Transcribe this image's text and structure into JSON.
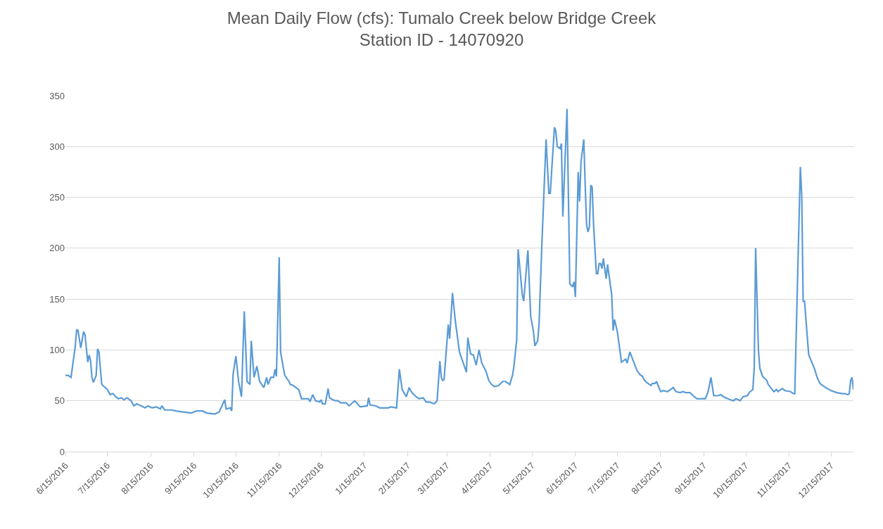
{
  "chart_data": {
    "type": "line",
    "title": "Mean Daily Flow (cfs): Tumalo Creek below Bridge Creek\nStation ID - 14070920",
    "x": [
      "2016-06-15",
      "2016-06-17",
      "2016-06-19",
      "2016-06-22",
      "2016-06-23",
      "2016-06-24",
      "2016-06-26",
      "2016-06-28",
      "2016-06-29",
      "2016-07-01",
      "2016-07-02",
      "2016-07-03",
      "2016-07-04",
      "2016-07-05",
      "2016-07-07",
      "2016-07-08",
      "2016-07-09",
      "2016-07-11",
      "2016-07-15",
      "2016-07-17",
      "2016-07-19",
      "2016-07-21",
      "2016-07-23",
      "2016-07-25",
      "2016-07-27",
      "2016-07-29",
      "2016-08-01",
      "2016-08-03",
      "2016-08-05",
      "2016-08-11",
      "2016-08-13",
      "2016-08-16",
      "2016-08-19",
      "2016-08-22",
      "2016-08-23",
      "2016-08-25",
      "2016-08-30",
      "2016-09-02",
      "2016-09-07",
      "2016-09-13",
      "2016-09-17",
      "2016-09-21",
      "2016-09-24",
      "2016-09-30",
      "2016-10-03",
      "2016-10-05",
      "2016-10-07",
      "2016-10-08",
      "2016-10-11",
      "2016-10-12",
      "2016-10-13",
      "2016-10-15",
      "2016-10-17",
      "2016-10-19",
      "2016-10-21",
      "2016-10-23",
      "2016-10-25",
      "2016-10-26",
      "2016-10-28",
      "2016-10-30",
      "2016-11-01",
      "2016-11-04",
      "2016-11-06",
      "2016-11-07",
      "2016-11-09",
      "2016-11-11",
      "2016-11-12",
      "2016-11-13",
      "2016-11-15",
      "2016-11-16",
      "2016-11-18",
      "2016-11-19",
      "2016-11-22",
      "2016-11-23",
      "2016-11-25",
      "2016-11-29",
      "2016-12-01",
      "2016-12-06",
      "2016-12-07",
      "2016-12-09",
      "2016-12-11",
      "2016-12-14",
      "2016-12-15",
      "2016-12-16",
      "2016-12-18",
      "2016-12-20",
      "2016-12-21",
      "2016-12-22",
      "2016-12-25",
      "2016-12-27",
      "2016-12-29",
      "2017-01-02",
      "2017-01-04",
      "2017-01-08",
      "2017-01-12",
      "2017-01-17",
      "2017-01-18",
      "2017-01-19",
      "2017-01-23",
      "2017-01-26",
      "2017-02-01",
      "2017-02-03",
      "2017-02-07",
      "2017-02-09",
      "2017-02-11",
      "2017-02-14",
      "2017-02-16",
      "2017-02-18",
      "2017-02-21",
      "2017-02-23",
      "2017-02-26",
      "2017-02-28",
      "2017-03-03",
      "2017-03-06",
      "2017-03-08",
      "2017-03-10",
      "2017-03-11",
      "2017-03-12",
      "2017-03-13",
      "2017-03-16",
      "2017-03-17",
      "2017-03-19",
      "2017-03-21",
      "2017-03-24",
      "2017-03-29",
      "2017-03-30",
      "2017-04-01",
      "2017-04-03",
      "2017-04-05",
      "2017-04-07",
      "2017-04-09",
      "2017-04-12",
      "2017-04-14",
      "2017-04-16",
      "2017-04-18",
      "2017-04-21",
      "2017-04-24",
      "2017-04-26",
      "2017-04-29",
      "2017-05-01",
      "2017-05-02",
      "2017-05-04",
      "2017-05-05",
      "2017-05-08",
      "2017-05-09",
      "2017-05-12",
      "2017-05-14",
      "2017-05-16",
      "2017-05-17",
      "2017-05-19",
      "2017-05-20",
      "2017-05-22",
      "2017-05-25",
      "2017-05-27",
      "2017-05-28",
      "2017-05-31",
      "2017-06-01",
      "2017-06-02",
      "2017-06-04",
      "2017-06-05",
      "2017-06-06",
      "2017-06-09",
      "2017-06-11",
      "2017-06-13",
      "2017-06-14",
      "2017-06-15",
      "2017-06-17",
      "2017-06-18",
      "2017-06-19",
      "2017-06-21",
      "2017-06-22",
      "2017-06-23",
      "2017-06-24",
      "2017-06-25",
      "2017-06-26",
      "2017-06-27",
      "2017-06-28",
      "2017-06-30",
      "2017-07-01",
      "2017-07-02",
      "2017-07-03",
      "2017-07-04",
      "2017-07-05",
      "2017-07-07",
      "2017-07-08",
      "2017-07-11",
      "2017-07-12",
      "2017-07-13",
      "2017-07-15",
      "2017-07-18",
      "2017-07-19",
      "2017-07-21",
      "2017-07-22",
      "2017-07-24",
      "2017-07-27",
      "2017-07-29",
      "2017-07-31",
      "2017-08-02",
      "2017-08-03",
      "2017-08-05",
      "2017-08-08",
      "2017-08-09",
      "2017-08-11",
      "2017-08-12",
      "2017-08-15",
      "2017-08-17",
      "2017-08-20",
      "2017-08-22",
      "2017-08-24",
      "2017-08-26",
      "2017-08-29",
      "2017-08-31",
      "2017-09-02",
      "2017-09-05",
      "2017-09-08",
      "2017-09-10",
      "2017-09-16",
      "2017-09-18",
      "2017-09-20",
      "2017-09-22",
      "2017-09-25",
      "2017-09-27",
      "2017-09-29",
      "2017-10-02",
      "2017-10-06",
      "2017-10-08",
      "2017-10-11",
      "2017-10-13",
      "2017-10-16",
      "2017-10-18",
      "2017-10-20",
      "2017-10-21",
      "2017-10-22",
      "2017-10-24",
      "2017-10-25",
      "2017-10-27",
      "2017-10-30",
      "2017-10-31",
      "2017-11-04",
      "2017-11-06",
      "2017-11-07",
      "2017-11-10",
      "2017-11-12",
      "2017-11-16",
      "2017-11-18",
      "2017-11-19",
      "2017-11-21",
      "2017-11-23",
      "2017-11-24",
      "2017-11-25",
      "2017-11-26",
      "2017-11-28",
      "2017-11-29",
      "2017-12-03",
      "2017-12-05",
      "2017-12-07",
      "2017-12-11",
      "2017-12-15",
      "2017-12-19",
      "2017-12-23",
      "2017-12-25",
      "2017-12-27",
      "2017-12-28",
      "2017-12-29",
      "2017-12-30",
      "2017-12-31"
    ],
    "series": [
      {
        "color": "#5b9bd5",
        "values": [
          75,
          75,
          73,
          103,
          120,
          119,
          102,
          118,
          115,
          88,
          95,
          89,
          73,
          68,
          75,
          101,
          98,
          66,
          61,
          56,
          57,
          54,
          52,
          53,
          51,
          53,
          50,
          45,
          47,
          43,
          45,
          43,
          44,
          42,
          45,
          41,
          41,
          40,
          39,
          38,
          40,
          40,
          38,
          37,
          39,
          45,
          51,
          42,
          43,
          40,
          76,
          94,
          68,
          54,
          138,
          69,
          66,
          109,
          73,
          84,
          69,
          63,
          73,
          66,
          73,
          73,
          81,
          74,
          191,
          98,
          82,
          75,
          69,
          66,
          65,
          61,
          52,
          52,
          49,
          56,
          50,
          49,
          51,
          47,
          47,
          62,
          53,
          52,
          50,
          50,
          48,
          48,
          45,
          50,
          44,
          45,
          53,
          46,
          45,
          43,
          43,
          44,
          43,
          81,
          61,
          54,
          63,
          58,
          54,
          52,
          53,
          49,
          48.5,
          47,
          50,
          89,
          73,
          70,
          71,
          125,
          111,
          156,
          129,
          98,
          78,
          112,
          96,
          95,
          85,
          100,
          87,
          79,
          70,
          66,
          64,
          65,
          69,
          69,
          66,
          75,
          84,
          110,
          199,
          154,
          148,
          198,
          133,
          118,
          104,
          109,
          126,
          204,
          307,
          254,
          254,
          319,
          315,
          300,
          298,
          303,
          231,
          337,
          165,
          162,
          167,
          152,
          275,
          246,
          285,
          307,
          262,
          223,
          216,
          221,
          262,
          260,
          223,
          175,
          175,
          185,
          185,
          180,
          190,
          170,
          184,
          154,
          119,
          130,
          118,
          88,
          89,
          91,
          87,
          98,
          87,
          80,
          76,
          74,
          71,
          68,
          65,
          67,
          67,
          69,
          59,
          60,
          59,
          61,
          63,
          59,
          58,
          59,
          58,
          58,
          54,
          52,
          52,
          59,
          73,
          55,
          55,
          56,
          54,
          52,
          50,
          52,
          50,
          54,
          55,
          59,
          61,
          83,
          200,
          100,
          82,
          74,
          70,
          66,
          59,
          61,
          59,
          62,
          60,
          59,
          57,
          57,
          170,
          280,
          251,
          148,
          148,
          112,
          95,
          82,
          73,
          67,
          63,
          60,
          58,
          57,
          57,
          56,
          57,
          70,
          73,
          61
        ]
      }
    ],
    "xlim": [
      "2016-06-15",
      "2017-12-31"
    ],
    "xticks": [
      {
        "value": "2016-06-15",
        "label": "6/15/2016"
      },
      {
        "value": "2016-07-15",
        "label": "7/15/2016"
      },
      {
        "value": "2016-08-15",
        "label": "8/15/2016"
      },
      {
        "value": "2016-09-15",
        "label": "9/15/2016"
      },
      {
        "value": "2016-10-15",
        "label": "10/15/2016"
      },
      {
        "value": "2016-11-15",
        "label": "11/15/2016"
      },
      {
        "value": "2016-12-15",
        "label": "12/15/2016"
      },
      {
        "value": "2017-01-15",
        "label": "1/15/2017"
      },
      {
        "value": "2017-02-15",
        "label": "2/15/2017"
      },
      {
        "value": "2017-03-15",
        "label": "3/15/2017"
      },
      {
        "value": "2017-04-15",
        "label": "4/15/2017"
      },
      {
        "value": "2017-05-15",
        "label": "5/15/2017"
      },
      {
        "value": "2017-06-15",
        "label": "6/15/2017"
      },
      {
        "value": "2017-07-15",
        "label": "7/15/2017"
      },
      {
        "value": "2017-08-15",
        "label": "8/15/2017"
      },
      {
        "value": "2017-09-15",
        "label": "9/15/2017"
      },
      {
        "value": "2017-10-15",
        "label": "10/15/2017"
      },
      {
        "value": "2017-11-15",
        "label": "11/15/2017"
      },
      {
        "value": "2017-12-15",
        "label": "12/15/2017"
      }
    ],
    "ylim": [
      0,
      350
    ],
    "yticks": [
      0,
      50,
      100,
      150,
      200,
      250,
      300,
      350
    ],
    "grid": "y",
    "marker": "none",
    "line_style": "solid"
  }
}
